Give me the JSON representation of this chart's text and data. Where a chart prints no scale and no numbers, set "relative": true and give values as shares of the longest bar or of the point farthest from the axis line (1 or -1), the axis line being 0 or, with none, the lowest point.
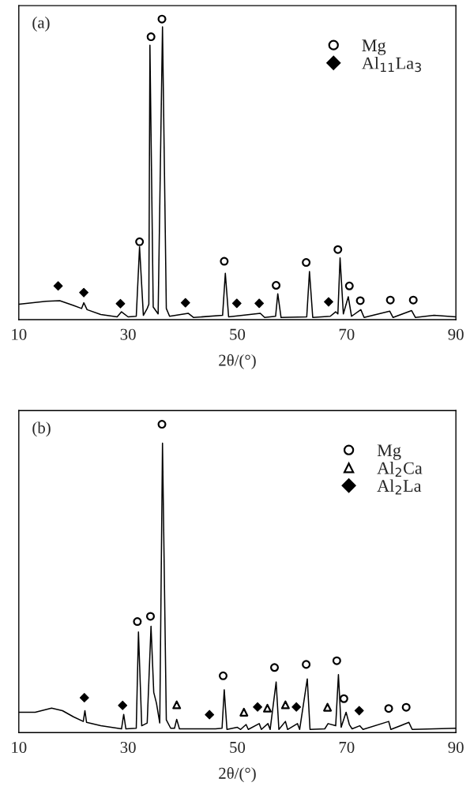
{
  "chart_data": [
    {
      "type": "line",
      "relative": true,
      "xlabel": "2θ/(°)",
      "xlim": [
        10,
        90
      ],
      "xticks": [
        10,
        30,
        50,
        70,
        90
      ],
      "legend": "top right",
      "grid": false,
      "annotations": [
        "(a)"
      ],
      "series": [
        {
          "type": "line",
          "color": "#000000",
          "marker": "none",
          "x": [
            10,
            15,
            17.5,
            20,
            21.5,
            21.9,
            22.5,
            25,
            28,
            28.8,
            30,
            31.5,
            32.1,
            32.8,
            33.5,
            33.8,
            34.0,
            34.6,
            35.5,
            36.3,
            37.0,
            37.6,
            41,
            42,
            47.3,
            47.8,
            48.4,
            54.2,
            55,
            57.0,
            57.4,
            58.0,
            62.7,
            63.2,
            63.8,
            67,
            68.0,
            68.4,
            68.8,
            69.4,
            70.3,
            70.9,
            72.6,
            73.2,
            77.9,
            78.5,
            81.9,
            82.6,
            86,
            90
          ],
          "values": [
            0.051,
            0.061,
            0.063,
            0.047,
            0.037,
            0.056,
            0.033,
            0.017,
            0.009,
            0.026,
            0.009,
            0.011,
            0.242,
            0.014,
            0.037,
            0.051,
            0.913,
            0.042,
            0.019,
            0.974,
            0.037,
            0.011,
            0.021,
            0.007,
            0.014,
            0.154,
            0.009,
            0.021,
            0.007,
            0.011,
            0.086,
            0.007,
            0.009,
            0.16,
            0.007,
            0.011,
            0.026,
            0.019,
            0.205,
            0.019,
            0.076,
            0.011,
            0.033,
            0.007,
            0.028,
            0.007,
            0.03,
            0.007,
            0.014,
            0.009
          ]
        },
        {
          "type": "scatter",
          "name": "Mg",
          "color": "#000000",
          "marker": "circle",
          "x": [
            32.1,
            34.2,
            36.2,
            47.6,
            57.1,
            62.6,
            68.4,
            70.5,
            72.5,
            78.0,
            82.2
          ],
          "values": [
            0.259,
            0.941,
            1.0,
            0.194,
            0.114,
            0.19,
            0.233,
            0.112,
            0.063,
            0.065,
            0.065
          ]
        },
        {
          "type": "scatter",
          "name": "Al$_{11}$La$_{3}$",
          "color": "#000000",
          "marker": "diamond",
          "x": [
            17.2,
            21.9,
            28.6,
            40.5,
            49.9,
            54.0,
            66.7
          ],
          "values": [
            0.112,
            0.09,
            0.053,
            0.056,
            0.054,
            0.054,
            0.059
          ]
        }
      ]
    },
    {
      "type": "line",
      "relative": true,
      "xlabel": "2θ/(°)",
      "xlim": [
        10,
        90
      ],
      "xticks": [
        10,
        30,
        50,
        70,
        90
      ],
      "legend": "top right",
      "grid": false,
      "annotations": [
        "(b)"
      ],
      "series": [
        {
          "type": "line",
          "color": "#000000",
          "marker": "none",
          "x": [
            10,
            13,
            16,
            18,
            20,
            21.8,
            22.1,
            22.4,
            25,
            28.8,
            29.2,
            29.6,
            31.5,
            31.9,
            32.5,
            33.5,
            34.2,
            34.7,
            35.2,
            35.8,
            36.3,
            37.0,
            37.8,
            38.5,
            38.9,
            39.4,
            46,
            47.2,
            47.6,
            48.1,
            50,
            50.6,
            51.6,
            52.0,
            54.0,
            54.4,
            55.6,
            56.0,
            57.1,
            57.6,
            58.8,
            59.2,
            61.0,
            61.4,
            62.8,
            63.3,
            66.0,
            66.6,
            68.0,
            68.5,
            69.0,
            69.9,
            70.5,
            71,
            72.4,
            73,
            77.7,
            78.1,
            81.4,
            82,
            86,
            90
          ],
          "values": [
            0.066,
            0.066,
            0.079,
            0.071,
            0.051,
            0.036,
            0.071,
            0.033,
            0.022,
            0.012,
            0.059,
            0.012,
            0.014,
            0.326,
            0.022,
            0.031,
            0.345,
            0.13,
            0.095,
            0.031,
            0.939,
            0.041,
            0.014,
            0.014,
            0.043,
            0.012,
            0.012,
            0.014,
            0.139,
            0.01,
            0.017,
            0.01,
            0.026,
            0.01,
            0.029,
            0.01,
            0.029,
            0.01,
            0.164,
            0.01,
            0.036,
            0.01,
            0.029,
            0.01,
            0.174,
            0.01,
            0.012,
            0.029,
            0.022,
            0.188,
            0.017,
            0.066,
            0.026,
            0.012,
            0.022,
            0.01,
            0.036,
            0.01,
            0.033,
            0.01,
            0.012,
            0.014
          ]
        },
        {
          "type": "scatter",
          "name": "Mg",
          "color": "#000000",
          "marker": "circle",
          "x": [
            31.7,
            34.1,
            36.2,
            47.4,
            56.8,
            62.6,
            68.2,
            69.5,
            77.7,
            80.9
          ],
          "values": [
            0.36,
            0.377,
            1.0,
            0.184,
            0.211,
            0.221,
            0.233,
            0.11,
            0.078,
            0.082
          ]
        },
        {
          "type": "scatter",
          "name": "Al$_{2}$Ca",
          "color": "#000000",
          "marker": "triangle",
          "x": [
            38.9,
            51.2,
            55.5,
            58.8,
            66.5
          ],
          "values": [
            0.09,
            0.066,
            0.079,
            0.09,
            0.082
          ]
        },
        {
          "type": "scatter",
          "name": "Al$_{2}$La",
          "color": "#000000",
          "marker": "diamond",
          "x": [
            22.0,
            29.0,
            44.9,
            53.7,
            60.8,
            72.3
          ],
          "values": [
            0.113,
            0.088,
            0.058,
            0.083,
            0.083,
            0.071
          ]
        }
      ]
    }
  ]
}
